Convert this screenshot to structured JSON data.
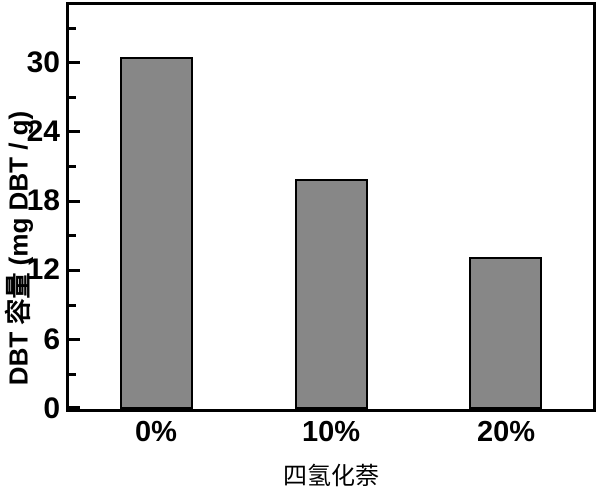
{
  "figure": {
    "background": "#ffffff",
    "text_color": "#000000",
    "frame_color": "#000000"
  },
  "chart_data": {
    "type": "bar",
    "categories": [
      "0%",
      "10%",
      "20%"
    ],
    "values": [
      30.5,
      19.9,
      13.2
    ],
    "title": "",
    "xlabel": "四氢化萘",
    "ylabel": "DBT 容量 (mg DBT / g)",
    "ylim": [
      0,
      35
    ],
    "y_major_ticks": [
      0,
      6,
      12,
      18,
      24,
      30
    ],
    "y_minor_ticks": [
      3,
      9,
      15,
      21,
      27,
      33
    ],
    "bar_color": "#878787",
    "bar_edge_color": "#000000",
    "grid": false,
    "legend": false
  }
}
